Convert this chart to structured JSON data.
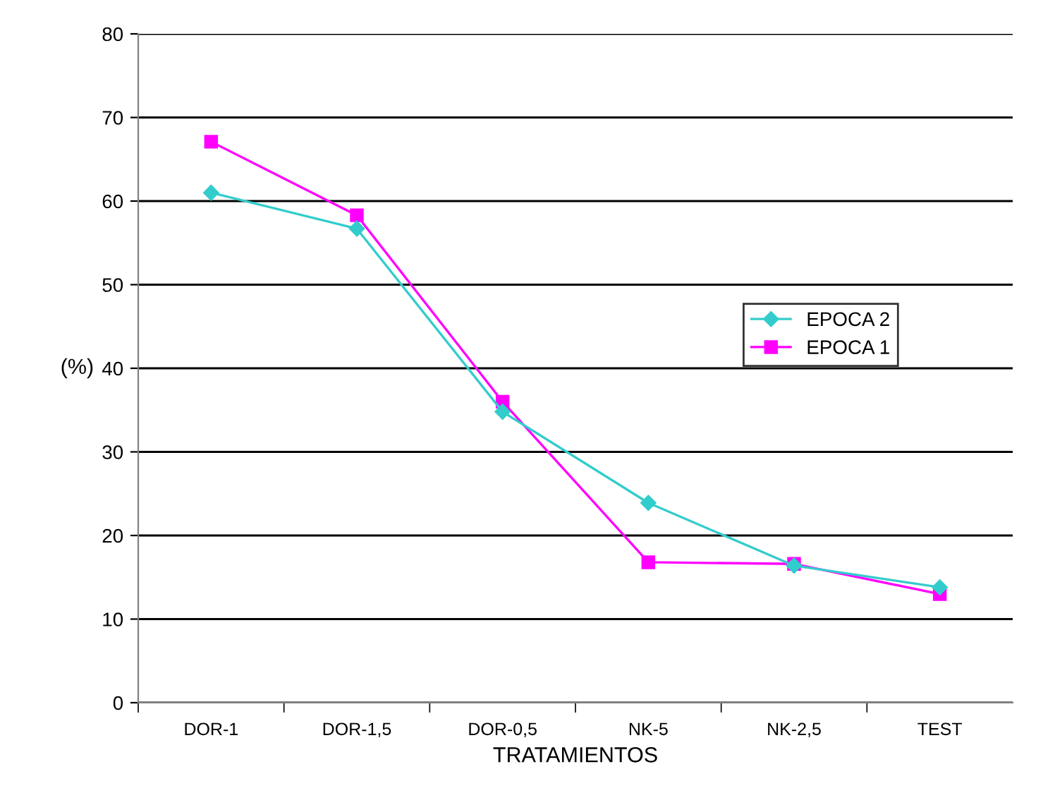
{
  "chart_data": {
    "type": "line",
    "xlabel": "TRATAMIENTOS",
    "ylabel": "(%)",
    "categories": [
      "DOR-1",
      "DOR-1,5",
      "DOR-0,5",
      "NK-5",
      "NK-2,5",
      "TEST"
    ],
    "series": [
      {
        "name": "EPOCA 2",
        "color": "#33cccc",
        "marker": "diamond",
        "values": [
          61,
          56.7,
          34.8,
          23.9,
          16.4,
          13.8
        ]
      },
      {
        "name": "EPOCA 1",
        "color": "#ff00ff",
        "marker": "square",
        "values": [
          67.1,
          58.3,
          36.0,
          16.8,
          16.6,
          13.0
        ]
      }
    ],
    "ylim": [
      0,
      80
    ],
    "yticks": [
      0,
      10,
      20,
      30,
      40,
      50,
      60,
      70,
      80
    ],
    "grid": "y",
    "legend": "right"
  }
}
